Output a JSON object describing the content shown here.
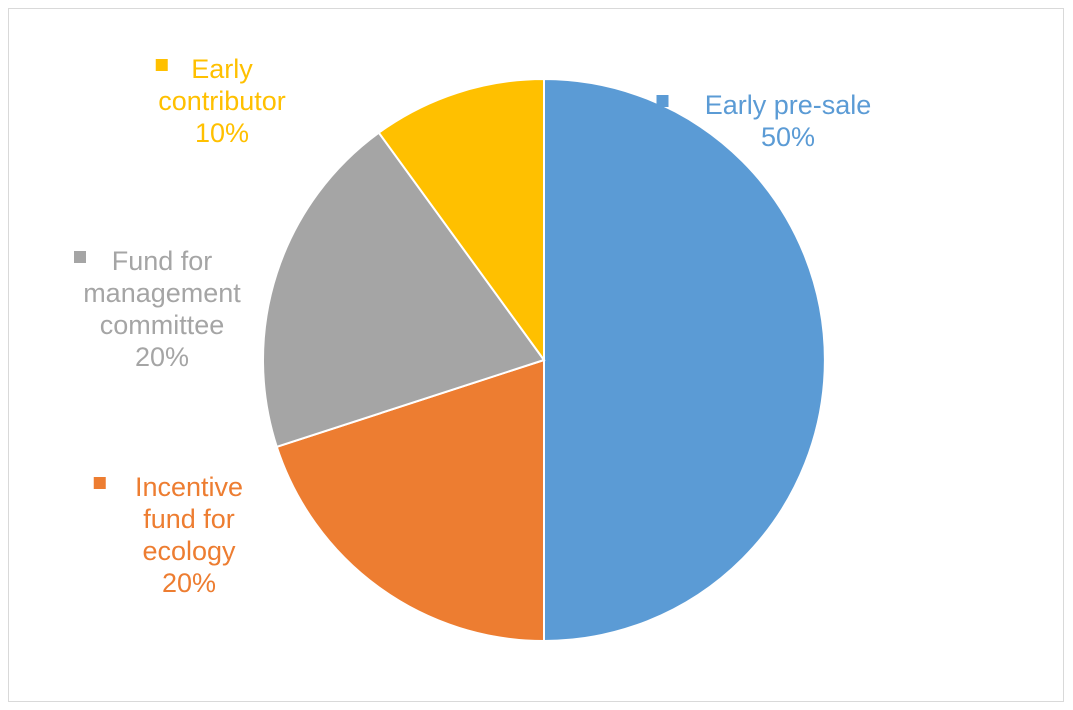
{
  "chart_data": {
    "type": "pie",
    "title": "",
    "slices": [
      {
        "label_lines": [
          "Early pre-sale"
        ],
        "percent_text": "50%",
        "value": 50,
        "color": "#5B9BD5"
      },
      {
        "label_lines": [
          "Incentive",
          "fund for",
          "ecology"
        ],
        "percent_text": "20%",
        "value": 20,
        "color": "#ED7D31"
      },
      {
        "label_lines": [
          "Fund for",
          "management",
          "committee"
        ],
        "percent_text": "20%",
        "value": 20,
        "color": "#A5A5A5"
      },
      {
        "label_lines": [
          "Early",
          "contributor"
        ],
        "percent_text": "10%",
        "value": 10,
        "color": "#FFC000"
      }
    ],
    "legend": "none",
    "data_labels": "category name, value and legend key",
    "start_angle": "12 o'clock, clockwise"
  }
}
